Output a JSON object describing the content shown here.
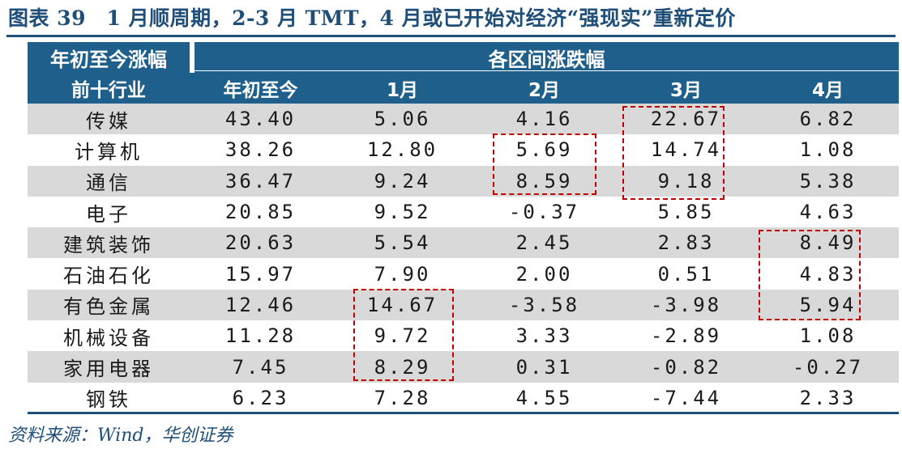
{
  "title": "图表 39　1 月顺周期，2-3 月 TMT，4 月或已开始对经济“强现实”重新定价",
  "header": {
    "left_top": "年初至今涨幅",
    "left_bottom": "前十行业",
    "span": "各区间涨跌幅",
    "cols": [
      "年初至今",
      "1月",
      "2月",
      "3月",
      "4月"
    ]
  },
  "rows": [
    {
      "name": "传媒",
      "values": [
        "43.40",
        "5.06",
        "4.16",
        "22.67",
        "6.82"
      ]
    },
    {
      "name": "计算机",
      "values": [
        "38.26",
        "12.80",
        "5.69",
        "14.74",
        "1.08"
      ]
    },
    {
      "name": "通信",
      "values": [
        "36.47",
        "9.24",
        "8.59",
        "9.18",
        "5.38"
      ]
    },
    {
      "name": "电子",
      "values": [
        "20.85",
        "9.52",
        "-0.37",
        "5.85",
        "4.63"
      ]
    },
    {
      "name": "建筑装饰",
      "values": [
        "20.63",
        "5.54",
        "2.45",
        "2.83",
        "8.49"
      ]
    },
    {
      "name": "石油石化",
      "values": [
        "15.97",
        "7.90",
        "2.00",
        "0.51",
        "4.83"
      ]
    },
    {
      "name": "有色金属",
      "values": [
        "12.46",
        "14.67",
        "-3.58",
        "-3.98",
        "5.94"
      ]
    },
    {
      "name": "机械设备",
      "values": [
        "11.28",
        "9.72",
        "3.33",
        "-2.89",
        "1.08"
      ]
    },
    {
      "name": "家用电器",
      "values": [
        "7.45",
        "8.29",
        "0.31",
        "-0.82",
        "-0.27"
      ]
    },
    {
      "name": "钢铁",
      "values": [
        "6.23",
        "7.28",
        "4.55",
        "-7.44",
        "2.33"
      ]
    }
  ],
  "highlight_color": "#c00000",
  "source": "资料来源：Wind，华创证券"
}
